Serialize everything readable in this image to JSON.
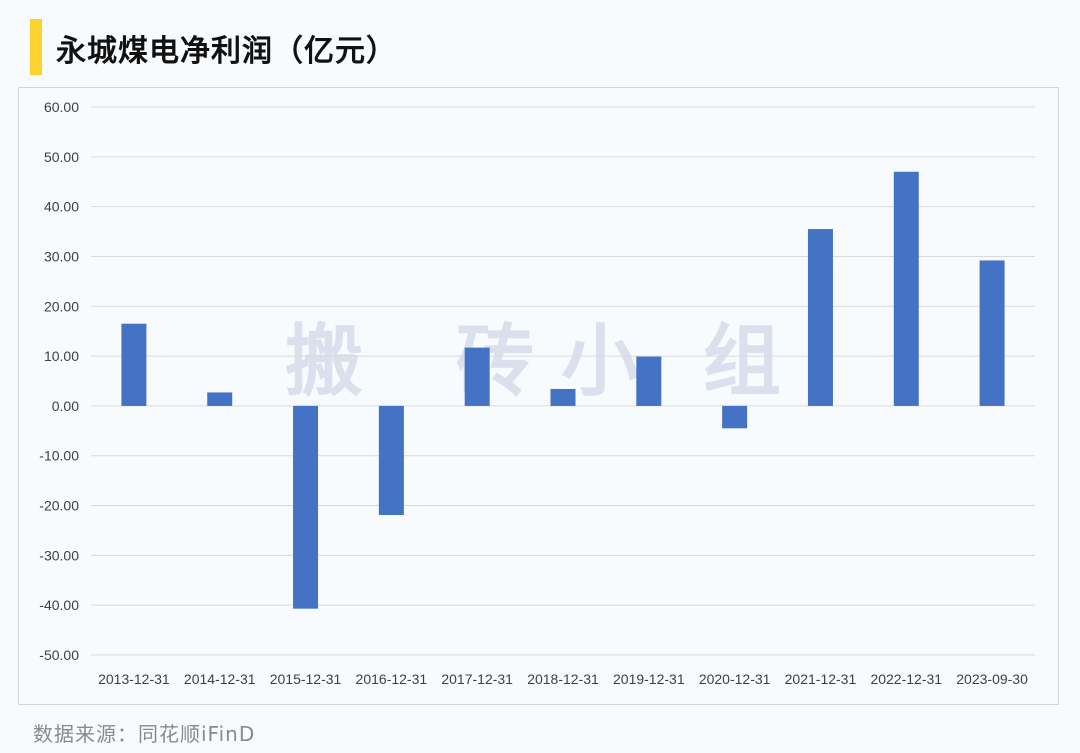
{
  "title": "永城煤电净利润（亿元）",
  "source": "数据来源：同花顺iFinD",
  "watermark": [
    "搬",
    "砖",
    "小",
    "组"
  ],
  "colors": {
    "accent": "#fdd22e",
    "bar": "#4472c4",
    "grid": "#d9d9d9"
  },
  "chart_data": {
    "type": "bar",
    "title": "永城煤电净利润（亿元）",
    "xlabel": "",
    "ylabel": "",
    "ylim": [
      -50,
      60
    ],
    "yticks": [
      "60.00",
      "50.00",
      "40.00",
      "30.00",
      "20.00",
      "10.00",
      "0.00",
      "-10.00",
      "-20.00",
      "-30.00",
      "-40.00",
      "-50.00"
    ],
    "grid": true,
    "categories": [
      "2013-12-31",
      "2014-12-31",
      "2015-12-31",
      "2016-12-31",
      "2017-12-31",
      "2018-12-31",
      "2019-12-31",
      "2020-12-31",
      "2021-12-31",
      "2022-12-31",
      "2023-09-30"
    ],
    "values": [
      16.5,
      2.7,
      -40.7,
      -21.9,
      11.7,
      3.4,
      9.9,
      -4.5,
      35.5,
      47.0,
      29.2
    ]
  }
}
